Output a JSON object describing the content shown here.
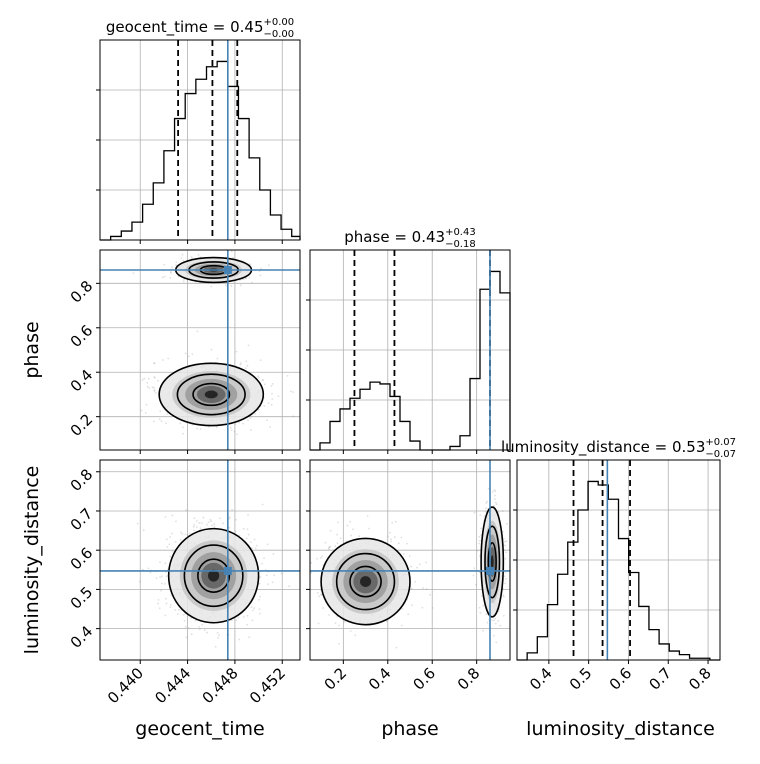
{
  "figure": {
    "type": "corner-plot",
    "colors": {
      "hist": "#000000",
      "truth": "#4682b4",
      "grid": "#b0b0b0",
      "samples": "#8c8c8c"
    }
  },
  "chart_data": [
    {
      "panel": "geocent_time-1d",
      "type": "histogram",
      "title_main": "geocent_time = 0.45",
      "title_sup": "+0.00",
      "title_sub": "−0.00",
      "xlim": [
        0.4366,
        0.4535
      ],
      "bins_x": [
        0.4366,
        0.4375,
        0.4384,
        0.4393,
        0.4402,
        0.4411,
        0.442,
        0.4429,
        0.4438,
        0.4447,
        0.4456,
        0.4465,
        0.4474,
        0.4483,
        0.4492,
        0.4501,
        0.451,
        0.4519,
        0.4528,
        0.4535
      ],
      "counts": [
        0.0,
        0.02,
        0.05,
        0.1,
        0.2,
        0.32,
        0.5,
        0.68,
        0.82,
        0.9,
        0.97,
        1.0,
        0.86,
        0.68,
        0.46,
        0.28,
        0.14,
        0.06,
        0.02
      ],
      "quantiles": [
        0.4432,
        0.4461,
        0.4482
      ],
      "truth": 0.4474
    },
    {
      "panel": "phase-1d",
      "type": "histogram",
      "title_main": "phase = 0.43",
      "title_sup": "+0.43",
      "title_sub": "−0.18",
      "xlim": [
        0.05,
        0.95
      ],
      "bins_x": [
        0.05,
        0.095,
        0.14,
        0.185,
        0.23,
        0.275,
        0.32,
        0.365,
        0.41,
        0.455,
        0.5,
        0.545,
        0.59,
        0.635,
        0.68,
        0.725,
        0.77,
        0.815,
        0.86,
        0.905,
        0.95
      ],
      "counts": [
        0.0,
        0.04,
        0.16,
        0.23,
        0.29,
        0.34,
        0.38,
        0.37,
        0.3,
        0.16,
        0.05,
        0.0,
        0.0,
        0.0,
        0.02,
        0.08,
        0.4,
        0.9,
        1.0,
        0.88
      ],
      "quantiles": [
        0.25,
        0.43,
        0.86
      ],
      "truth": 0.86
    },
    {
      "panel": "luminosity_distance-1d",
      "type": "histogram",
      "title_main": "luminosity_distance = 0.53",
      "title_sup": "+0.07",
      "title_sub": "−0.07",
      "xlim": [
        0.32,
        0.83
      ],
      "bins_x": [
        0.32,
        0.3455,
        0.371,
        0.3965,
        0.422,
        0.4475,
        0.473,
        0.4985,
        0.524,
        0.5495,
        0.575,
        0.6005,
        0.626,
        0.6515,
        0.677,
        0.7025,
        0.728,
        0.7535,
        0.779,
        0.8045,
        0.83
      ],
      "counts": [
        0.0,
        0.04,
        0.13,
        0.31,
        0.48,
        0.66,
        0.84,
        1.0,
        0.98,
        0.9,
        0.68,
        0.49,
        0.3,
        0.17,
        0.09,
        0.05,
        0.03,
        0.01,
        0.01,
        0.0
      ],
      "quantiles": [
        0.462,
        0.535,
        0.604
      ],
      "truth": 0.547
    },
    {
      "panel": "geocent_time-vs-phase",
      "type": "scatter-density",
      "xlim": [
        0.4366,
        0.4535
      ],
      "ylim": [
        0.05,
        0.95
      ],
      "blobs": [
        {
          "cx": 0.4462,
          "cy": 0.86,
          "sx": 0.0016,
          "sy": 0.028,
          "weight": 0.45
        },
        {
          "cx": 0.446,
          "cy": 0.3,
          "sx": 0.0022,
          "sy": 0.07,
          "weight": 0.55
        }
      ],
      "truth": [
        0.4474,
        0.86
      ]
    },
    {
      "panel": "geocent_time-vs-luminosity_distance",
      "type": "scatter-density",
      "xlim": [
        0.4366,
        0.4535
      ],
      "ylim": [
        0.32,
        0.83
      ],
      "blobs": [
        {
          "cx": 0.4462,
          "cy": 0.535,
          "sx": 0.0019,
          "sy": 0.06,
          "weight": 1.0
        }
      ],
      "truth": [
        0.4474,
        0.547
      ]
    },
    {
      "panel": "phase-vs-luminosity_distance",
      "type": "scatter-density",
      "xlim": [
        0.05,
        0.95
      ],
      "ylim": [
        0.32,
        0.83
      ],
      "blobs": [
        {
          "cx": 0.3,
          "cy": 0.52,
          "sx": 0.1,
          "sy": 0.055,
          "weight": 0.55
        },
        {
          "cx": 0.87,
          "cy": 0.57,
          "sx": 0.025,
          "sy": 0.07,
          "weight": 0.45
        }
      ],
      "truth": [
        0.86,
        0.547
      ]
    }
  ],
  "axes": {
    "geocent_time": {
      "label": "geocent_time",
      "ticks": [
        "0.440",
        "0.444",
        "0.448",
        "0.452"
      ],
      "tick_values": [
        0.44,
        0.444,
        0.448,
        0.452
      ]
    },
    "phase": {
      "label": "phase",
      "ticks": [
        "0.2",
        "0.4",
        "0.6",
        "0.8"
      ],
      "tick_values": [
        0.2,
        0.4,
        0.6,
        0.8
      ]
    },
    "luminosity_distance": {
      "label": "luminosity_distance",
      "ticks": [
        "0.4",
        "0.5",
        "0.6",
        "0.7",
        "0.8"
      ],
      "tick_values": [
        0.4,
        0.5,
        0.6,
        0.7,
        0.8
      ]
    }
  }
}
